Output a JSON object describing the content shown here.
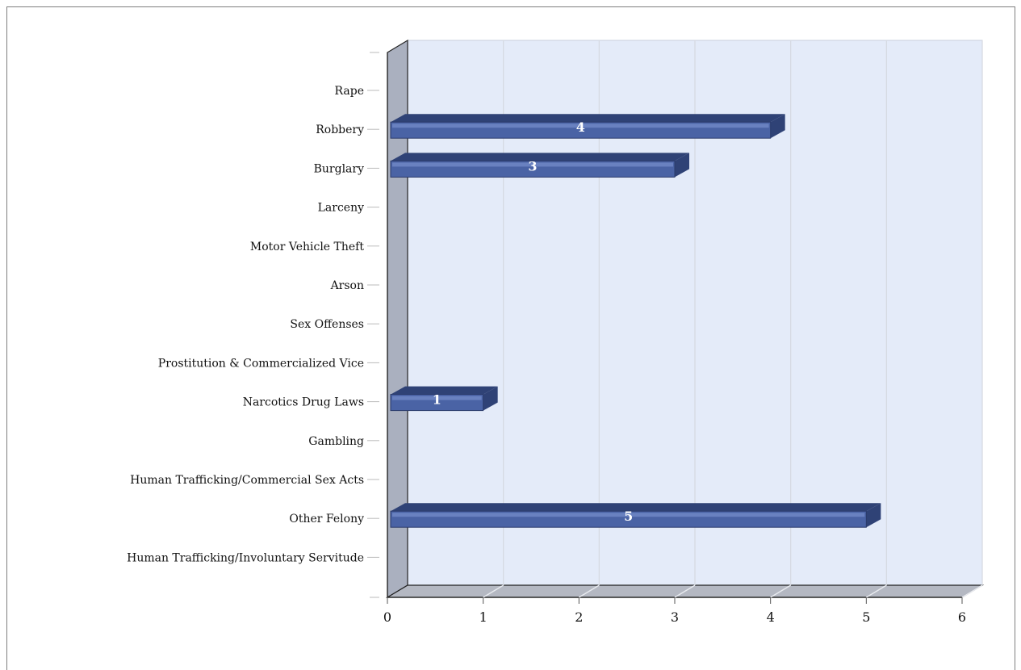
{
  "chart_data": {
    "type": "bar",
    "orientation": "horizontal",
    "style": "3d",
    "title": "",
    "xlabel": "",
    "ylabel": "",
    "categories": [
      "Rape",
      "Robbery",
      "Burglary",
      "Larceny",
      "Motor Vehicle Theft",
      "Arson",
      "Sex Offenses",
      "Prostitution & Commercialized Vice",
      "Narcotics Drug Laws",
      "Gambling",
      "Human Trafficking/Commercial Sex Acts",
      "Other Felony",
      "Human Trafficking/Involuntary Servitude"
    ],
    "values": [
      0,
      4,
      3,
      0,
      0,
      0,
      0,
      0,
      1,
      0,
      0,
      5,
      0
    ],
    "xlim": [
      0,
      6
    ],
    "xticks": [
      "0",
      "1",
      "2",
      "3",
      "4",
      "5",
      "6"
    ],
    "grid": true,
    "legend": "none",
    "colors": {
      "bar": "#4a63a5",
      "bar_top": "#6f86c4",
      "bar_side": "#2f4276",
      "plot_background": "#e4ebf9",
      "wall": "#aab0bf",
      "floor": "#b4b8c2",
      "gridline": "#d5d9e1"
    }
  }
}
